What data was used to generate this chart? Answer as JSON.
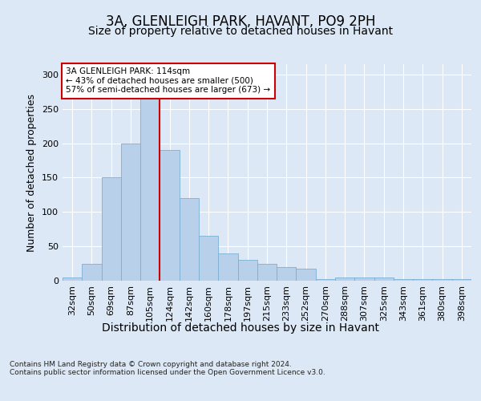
{
  "title": "3A, GLENLEIGH PARK, HAVANT, PO9 2PH",
  "subtitle": "Size of property relative to detached houses in Havant",
  "xlabel": "Distribution of detached houses by size in Havant",
  "ylabel": "Number of detached properties",
  "categories": [
    "32sqm",
    "50sqm",
    "69sqm",
    "87sqm",
    "105sqm",
    "124sqm",
    "142sqm",
    "160sqm",
    "178sqm",
    "197sqm",
    "215sqm",
    "233sqm",
    "252sqm",
    "270sqm",
    "288sqm",
    "307sqm",
    "325sqm",
    "343sqm",
    "361sqm",
    "380sqm",
    "398sqm"
  ],
  "values": [
    5,
    25,
    150,
    200,
    265,
    190,
    120,
    65,
    40,
    30,
    25,
    20,
    17,
    2,
    5,
    5,
    5,
    2,
    2,
    2,
    2
  ],
  "bar_color": "#b8d0ea",
  "bar_edge_color": "#7aafd4",
  "property_line_x": 4.5,
  "property_line_color": "#cc0000",
  "annotation_text": "3A GLENLEIGH PARK: 114sqm\n← 43% of detached houses are smaller (500)\n57% of semi-detached houses are larger (673) →",
  "annotation_box_facecolor": "#ffffff",
  "annotation_box_edge": "#cc0000",
  "ylim": [
    0,
    315
  ],
  "yticks": [
    0,
    50,
    100,
    150,
    200,
    250,
    300
  ],
  "footer_text": "Contains HM Land Registry data © Crown copyright and database right 2024.\nContains public sector information licensed under the Open Government Licence v3.0.",
  "bg_color": "#dce8f5",
  "plot_bg_color": "#dce8f5",
  "title_fontsize": 12,
  "subtitle_fontsize": 10,
  "tick_fontsize": 8,
  "ylabel_fontsize": 9,
  "xlabel_fontsize": 10
}
